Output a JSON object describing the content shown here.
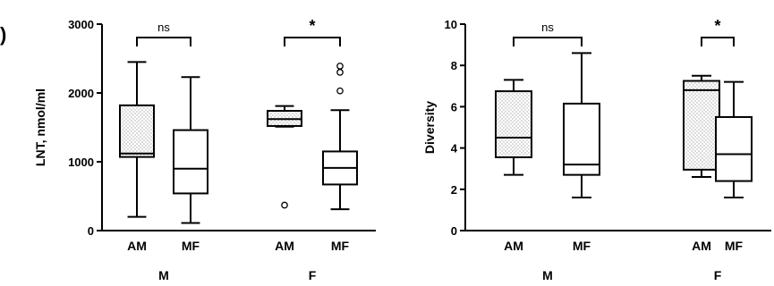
{
  "panel_letter": ")",
  "chart_data": [
    {
      "type": "box",
      "ylabel": "LNT, nmol/ml",
      "ylim": [
        0,
        3000
      ],
      "yticks": [
        "0",
        "1000",
        "2000",
        "3000"
      ],
      "groups": [
        {
          "label": "M",
          "significance": "ns",
          "boxes": [
            {
              "category": "AM",
              "whisker_low": 200,
              "q1": 1070,
              "median": 1120,
              "q3": 1820,
              "whisker_high": 2450,
              "outliers": [],
              "fill": "dotted"
            },
            {
              "category": "MF",
              "whisker_low": 110,
              "q1": 540,
              "median": 900,
              "q3": 1460,
              "whisker_high": 2230,
              "outliers": [],
              "fill": "white"
            }
          ]
        },
        {
          "label": "F",
          "significance": "*",
          "boxes": [
            {
              "category": "AM",
              "whisker_low": 1510,
              "q1": 1520,
              "median": 1620,
              "q3": 1740,
              "whisker_high": 1810,
              "outliers": [
                370
              ],
              "fill": "dotted"
            },
            {
              "category": "MF",
              "whisker_low": 310,
              "q1": 670,
              "median": 910,
              "q3": 1150,
              "whisker_high": 1750,
              "outliers": [
                2030,
                2300,
                2390
              ],
              "fill": "white"
            }
          ]
        }
      ]
    },
    {
      "type": "box",
      "ylabel": "Diversity",
      "ylim": [
        0,
        10
      ],
      "yticks": [
        "0",
        "2",
        "4",
        "6",
        "8",
        "10"
      ],
      "groups": [
        {
          "label": "M",
          "significance": "ns",
          "boxes": [
            {
              "category": "AM",
              "whisker_low": 2.7,
              "q1": 3.55,
              "median": 4.5,
              "q3": 6.75,
              "whisker_high": 7.3,
              "outliers": [],
              "fill": "dotted"
            },
            {
              "category": "MF",
              "whisker_low": 1.6,
              "q1": 2.7,
              "median": 3.2,
              "q3": 6.15,
              "whisker_high": 8.6,
              "outliers": [],
              "fill": "white"
            }
          ]
        },
        {
          "label": "F",
          "significance": "*",
          "boxes": [
            {
              "category": "AM",
              "whisker_low": 2.6,
              "q1": 2.95,
              "median": 6.8,
              "q3": 7.25,
              "whisker_high": 7.5,
              "outliers": [],
              "fill": "dotted"
            },
            {
              "category": "MF",
              "whisker_low": 1.6,
              "q1": 2.4,
              "median": 3.7,
              "q3": 5.5,
              "whisker_high": 7.2,
              "outliers": [],
              "fill": "white"
            }
          ]
        }
      ]
    }
  ]
}
